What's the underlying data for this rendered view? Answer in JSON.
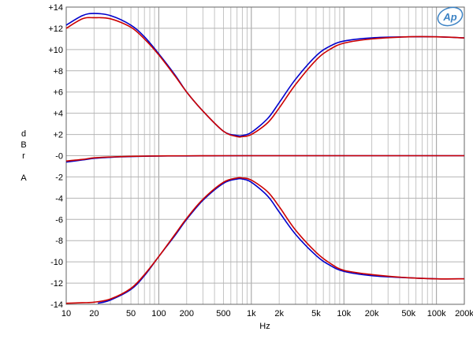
{
  "chart_data": {
    "type": "line",
    "xscale": "log",
    "xlim": [
      10,
      200000
    ],
    "ylim": [
      -14,
      14
    ],
    "grid": true,
    "xlabel": "Hz",
    "ylabel": [
      "d",
      "B",
      "r",
      "",
      "A"
    ],
    "x_ticks": [
      10,
      20,
      50,
      100,
      200,
      500,
      1000,
      2000,
      5000,
      10000,
      20000,
      50000,
      100000,
      200000
    ],
    "x_tick_labels": [
      "10",
      "20",
      "50",
      "100",
      "200",
      "500",
      "1k",
      "2k",
      "5k",
      "10k",
      "20k",
      "50k",
      "100k",
      "200k"
    ],
    "y_ticks": [
      14,
      12,
      10,
      8,
      6,
      4,
      2,
      0,
      -2,
      -4,
      -6,
      -8,
      -10,
      -12,
      -14
    ],
    "y_tick_labels": [
      "+14",
      "+12",
      "+10",
      "+8",
      "+6",
      "+4",
      "+2",
      "-0",
      "-2",
      "-4",
      "-6",
      "-8",
      "-10",
      "-12",
      "-14"
    ],
    "logo_text": "Ap",
    "series": [
      {
        "color": "#0000cc",
        "x": [
          10,
          15,
          20,
          30,
          50,
          70,
          100,
          150,
          200,
          300,
          500,
          700,
          800,
          1000,
          1500,
          2000,
          3000,
          5000,
          7000,
          10000,
          20000,
          50000,
          100000,
          200000
        ],
        "y": [
          12.3,
          13.2,
          13.4,
          13.2,
          12.3,
          11.2,
          9.6,
          7.6,
          6.0,
          4.2,
          2.3,
          1.9,
          1.9,
          2.2,
          3.5,
          5.0,
          7.2,
          9.4,
          10.3,
          10.8,
          11.1,
          11.2,
          11.2,
          11.1
        ]
      },
      {
        "color": "#cc0000",
        "x": [
          10,
          15,
          20,
          30,
          50,
          70,
          100,
          150,
          200,
          300,
          500,
          700,
          800,
          1000,
          1500,
          2000,
          3000,
          5000,
          7000,
          10000,
          20000,
          50000,
          100000,
          200000
        ],
        "y": [
          12.0,
          12.9,
          13.0,
          12.9,
          12.1,
          11.0,
          9.5,
          7.5,
          6.0,
          4.2,
          2.3,
          1.8,
          1.8,
          2.0,
          3.1,
          4.5,
          6.7,
          9.0,
          10.0,
          10.6,
          11.0,
          11.2,
          11.2,
          11.1
        ]
      },
      {
        "color": "#0000cc",
        "x": [
          10,
          15,
          20,
          30,
          50,
          100,
          200,
          500,
          1000,
          5000,
          20000,
          100000,
          200000
        ],
        "y": [
          -0.6,
          -0.4,
          -0.25,
          -0.15,
          -0.08,
          -0.03,
          -0.02,
          -0.01,
          0.0,
          0.0,
          0.0,
          0.0,
          0.0
        ]
      },
      {
        "color": "#cc0000",
        "x": [
          10,
          15,
          20,
          30,
          50,
          100,
          200,
          500,
          1000,
          5000,
          20000,
          100000,
          200000
        ],
        "y": [
          -0.5,
          -0.35,
          -0.2,
          -0.12,
          -0.06,
          -0.02,
          -0.01,
          0.0,
          0.0,
          0.0,
          0.0,
          0.0,
          0.0
        ]
      },
      {
        "color": "#0000cc",
        "x": [
          22,
          30,
          50,
          70,
          100,
          150,
          200,
          300,
          500,
          700,
          800,
          1000,
          1500,
          2000,
          3000,
          5000,
          7000,
          10000,
          20000,
          50000,
          100000,
          200000
        ],
        "y": [
          -13.9,
          -13.6,
          -12.6,
          -11.3,
          -9.5,
          -7.5,
          -6.0,
          -4.2,
          -2.6,
          -2.2,
          -2.2,
          -2.5,
          -3.8,
          -5.3,
          -7.4,
          -9.4,
          -10.3,
          -10.9,
          -11.3,
          -11.5,
          -11.6,
          -11.6
        ]
      },
      {
        "color": "#cc0000",
        "x": [
          10,
          15,
          20,
          30,
          50,
          70,
          100,
          150,
          200,
          300,
          500,
          700,
          800,
          1000,
          1500,
          2000,
          3000,
          5000,
          7000,
          10000,
          20000,
          50000,
          100000,
          200000
        ],
        "y": [
          -13.9,
          -13.85,
          -13.8,
          -13.5,
          -12.5,
          -11.2,
          -9.5,
          -7.4,
          -5.9,
          -4.1,
          -2.5,
          -2.1,
          -2.1,
          -2.3,
          -3.4,
          -4.8,
          -7.0,
          -9.1,
          -10.1,
          -10.8,
          -11.2,
          -11.5,
          -11.6,
          -11.6
        ]
      }
    ]
  }
}
